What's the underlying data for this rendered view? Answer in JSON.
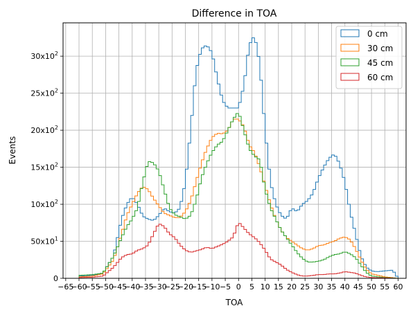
{
  "chart_data": {
    "type": "step-histogram",
    "title": "Difference in TOA",
    "xlabel": "TOA",
    "ylabel": "Events",
    "xlim": [
      -66,
      63
    ],
    "ylim": [
      0,
      3450
    ],
    "grid": true,
    "legend_position": "top-right",
    "x_ticks": [
      -65,
      -60,
      -55,
      -50,
      -45,
      -40,
      -35,
      -30,
      -25,
      -20,
      -15,
      -10,
      -5,
      0,
      5,
      10,
      15,
      20,
      25,
      30,
      35,
      40,
      45,
      50,
      55,
      60
    ],
    "x_tick_labels": [
      "−65",
      "−60",
      "−55",
      "−50",
      "−45",
      "−40",
      "−35",
      "−30",
      "−25",
      "−20",
      "−15",
      "−10",
      "−5",
      "0",
      "5",
      "10",
      "15",
      "20",
      "25",
      "30",
      "35",
      "40",
      "45",
      "50",
      "55",
      "60"
    ],
    "y_ticks": [
      0,
      500,
      1000,
      1500,
      2000,
      2500,
      3000
    ],
    "y_tick_labels": [
      {
        "base": "0",
        "exp": ""
      },
      {
        "base": "50x10",
        "exp": "1"
      },
      {
        "base": "10x10",
        "exp": "2"
      },
      {
        "base": "15x10",
        "exp": "2"
      },
      {
        "base": "20x10",
        "exp": "2"
      },
      {
        "base": "25x10",
        "exp": "2"
      },
      {
        "base": "30x10",
        "exp": "2"
      }
    ],
    "bins": {
      "start": -60,
      "width": 1,
      "count": 120
    },
    "series": [
      {
        "name": "0 cm",
        "color": "#1f77b4",
        "anchors": [
          [
            -60,
            30
          ],
          [
            -55,
            40
          ],
          [
            -51,
            70
          ],
          [
            -47,
            300
          ],
          [
            -44,
            800
          ],
          [
            -42,
            1000
          ],
          [
            -40,
            1100
          ],
          [
            -38,
            1000
          ],
          [
            -36,
            840
          ],
          [
            -34,
            800
          ],
          [
            -32,
            780
          ],
          [
            -30,
            850
          ],
          [
            -28,
            950
          ],
          [
            -26,
            900
          ],
          [
            -24,
            880
          ],
          [
            -22,
            950
          ],
          [
            -20,
            1300
          ],
          [
            -18,
            2000
          ],
          [
            -16,
            2800
          ],
          [
            -14,
            3100
          ],
          [
            -12,
            3150
          ],
          [
            -10,
            3050
          ],
          [
            -8,
            2700
          ],
          [
            -6,
            2400
          ],
          [
            -4,
            2300
          ],
          [
            -2,
            2300
          ],
          [
            0,
            2300
          ],
          [
            2,
            2600
          ],
          [
            4,
            3150
          ],
          [
            6,
            3280
          ],
          [
            8,
            2900
          ],
          [
            10,
            2000
          ],
          [
            12,
            1300
          ],
          [
            14,
            1000
          ],
          [
            16,
            850
          ],
          [
            18,
            800
          ],
          [
            20,
            950
          ],
          [
            22,
            900
          ],
          [
            24,
            1000
          ],
          [
            26,
            1050
          ],
          [
            28,
            1150
          ],
          [
            30,
            1350
          ],
          [
            32,
            1500
          ],
          [
            34,
            1620
          ],
          [
            36,
            1680
          ],
          [
            38,
            1550
          ],
          [
            40,
            1300
          ],
          [
            42,
            900
          ],
          [
            44,
            600
          ],
          [
            46,
            300
          ],
          [
            48,
            150
          ],
          [
            50,
            100
          ],
          [
            52,
            90
          ],
          [
            55,
            100
          ],
          [
            58,
            110
          ],
          [
            60,
            0
          ]
        ]
      },
      {
        "name": "30 cm",
        "color": "#ff7f0e",
        "anchors": [
          [
            -60,
            20
          ],
          [
            -55,
            30
          ],
          [
            -51,
            60
          ],
          [
            -47,
            250
          ],
          [
            -44,
            600
          ],
          [
            -42,
            850
          ],
          [
            -40,
            1000
          ],
          [
            -38,
            1150
          ],
          [
            -36,
            1240
          ],
          [
            -34,
            1200
          ],
          [
            -32,
            1080
          ],
          [
            -30,
            980
          ],
          [
            -28,
            880
          ],
          [
            -26,
            850
          ],
          [
            -24,
            820
          ],
          [
            -22,
            820
          ],
          [
            -20,
            900
          ],
          [
            -18,
            1050
          ],
          [
            -16,
            1300
          ],
          [
            -14,
            1550
          ],
          [
            -12,
            1750
          ],
          [
            -10,
            1900
          ],
          [
            -8,
            1960
          ],
          [
            -6,
            1950
          ],
          [
            -4,
            2000
          ],
          [
            -2,
            2150
          ],
          [
            0,
            2150
          ],
          [
            2,
            2050
          ],
          [
            4,
            1800
          ],
          [
            6,
            1700
          ],
          [
            8,
            1500
          ],
          [
            10,
            1250
          ],
          [
            12,
            1000
          ],
          [
            14,
            800
          ],
          [
            16,
            650
          ],
          [
            18,
            550
          ],
          [
            20,
            500
          ],
          [
            22,
            450
          ],
          [
            24,
            400
          ],
          [
            26,
            380
          ],
          [
            28,
            400
          ],
          [
            30,
            440
          ],
          [
            32,
            450
          ],
          [
            34,
            480
          ],
          [
            36,
            500
          ],
          [
            38,
            540
          ],
          [
            40,
            560
          ],
          [
            42,
            520
          ],
          [
            44,
            400
          ],
          [
            46,
            250
          ],
          [
            48,
            120
          ],
          [
            50,
            60
          ],
          [
            55,
            20
          ],
          [
            60,
            0
          ]
        ]
      },
      {
        "name": "45 cm",
        "color": "#2ca02c",
        "anchors": [
          [
            -60,
            40
          ],
          [
            -55,
            50
          ],
          [
            -51,
            70
          ],
          [
            -47,
            300
          ],
          [
            -44,
            550
          ],
          [
            -42,
            700
          ],
          [
            -40,
            800
          ],
          [
            -38,
            950
          ],
          [
            -36,
            1300
          ],
          [
            -34,
            1580
          ],
          [
            -32,
            1560
          ],
          [
            -30,
            1450
          ],
          [
            -28,
            1200
          ],
          [
            -26,
            950
          ],
          [
            -24,
            860
          ],
          [
            -22,
            830
          ],
          [
            -20,
            800
          ],
          [
            -18,
            850
          ],
          [
            -16,
            1050
          ],
          [
            -14,
            1350
          ],
          [
            -12,
            1550
          ],
          [
            -10,
            1700
          ],
          [
            -8,
            1800
          ],
          [
            -6,
            1850
          ],
          [
            -4,
            2000
          ],
          [
            -2,
            2150
          ],
          [
            0,
            2250
          ],
          [
            2,
            2000
          ],
          [
            4,
            1750
          ],
          [
            6,
            1650
          ],
          [
            8,
            1600
          ],
          [
            10,
            1200
          ],
          [
            12,
            950
          ],
          [
            14,
            800
          ],
          [
            16,
            650
          ],
          [
            18,
            550
          ],
          [
            20,
            450
          ],
          [
            22,
            350
          ],
          [
            24,
            270
          ],
          [
            26,
            220
          ],
          [
            28,
            220
          ],
          [
            30,
            230
          ],
          [
            32,
            250
          ],
          [
            34,
            290
          ],
          [
            36,
            320
          ],
          [
            38,
            330
          ],
          [
            40,
            360
          ],
          [
            42,
            330
          ],
          [
            44,
            280
          ],
          [
            46,
            180
          ],
          [
            48,
            80
          ],
          [
            50,
            30
          ],
          [
            55,
            10
          ],
          [
            60,
            0
          ]
        ]
      },
      {
        "name": "60 cm",
        "color": "#d62728",
        "anchors": [
          [
            -60,
            10
          ],
          [
            -55,
            15
          ],
          [
            -51,
            30
          ],
          [
            -47,
            150
          ],
          [
            -44,
            280
          ],
          [
            -42,
            320
          ],
          [
            -40,
            330
          ],
          [
            -38,
            380
          ],
          [
            -36,
            400
          ],
          [
            -34,
            450
          ],
          [
            -32,
            600
          ],
          [
            -30,
            740
          ],
          [
            -28,
            700
          ],
          [
            -26,
            600
          ],
          [
            -24,
            550
          ],
          [
            -22,
            450
          ],
          [
            -20,
            380
          ],
          [
            -18,
            350
          ],
          [
            -16,
            370
          ],
          [
            -14,
            390
          ],
          [
            -12,
            420
          ],
          [
            -10,
            400
          ],
          [
            -8,
            430
          ],
          [
            -6,
            460
          ],
          [
            -4,
            500
          ],
          [
            -2,
            560
          ],
          [
            0,
            760
          ],
          [
            2,
            680
          ],
          [
            4,
            600
          ],
          [
            6,
            550
          ],
          [
            8,
            480
          ],
          [
            10,
            380
          ],
          [
            12,
            260
          ],
          [
            14,
            220
          ],
          [
            16,
            180
          ],
          [
            18,
            120
          ],
          [
            20,
            80
          ],
          [
            22,
            50
          ],
          [
            24,
            30
          ],
          [
            26,
            30
          ],
          [
            28,
            40
          ],
          [
            30,
            50
          ],
          [
            32,
            50
          ],
          [
            34,
            60
          ],
          [
            36,
            60
          ],
          [
            38,
            70
          ],
          [
            40,
            90
          ],
          [
            42,
            80
          ],
          [
            44,
            70
          ],
          [
            46,
            40
          ],
          [
            48,
            20
          ],
          [
            50,
            10
          ],
          [
            55,
            5
          ],
          [
            60,
            0
          ]
        ]
      }
    ]
  }
}
